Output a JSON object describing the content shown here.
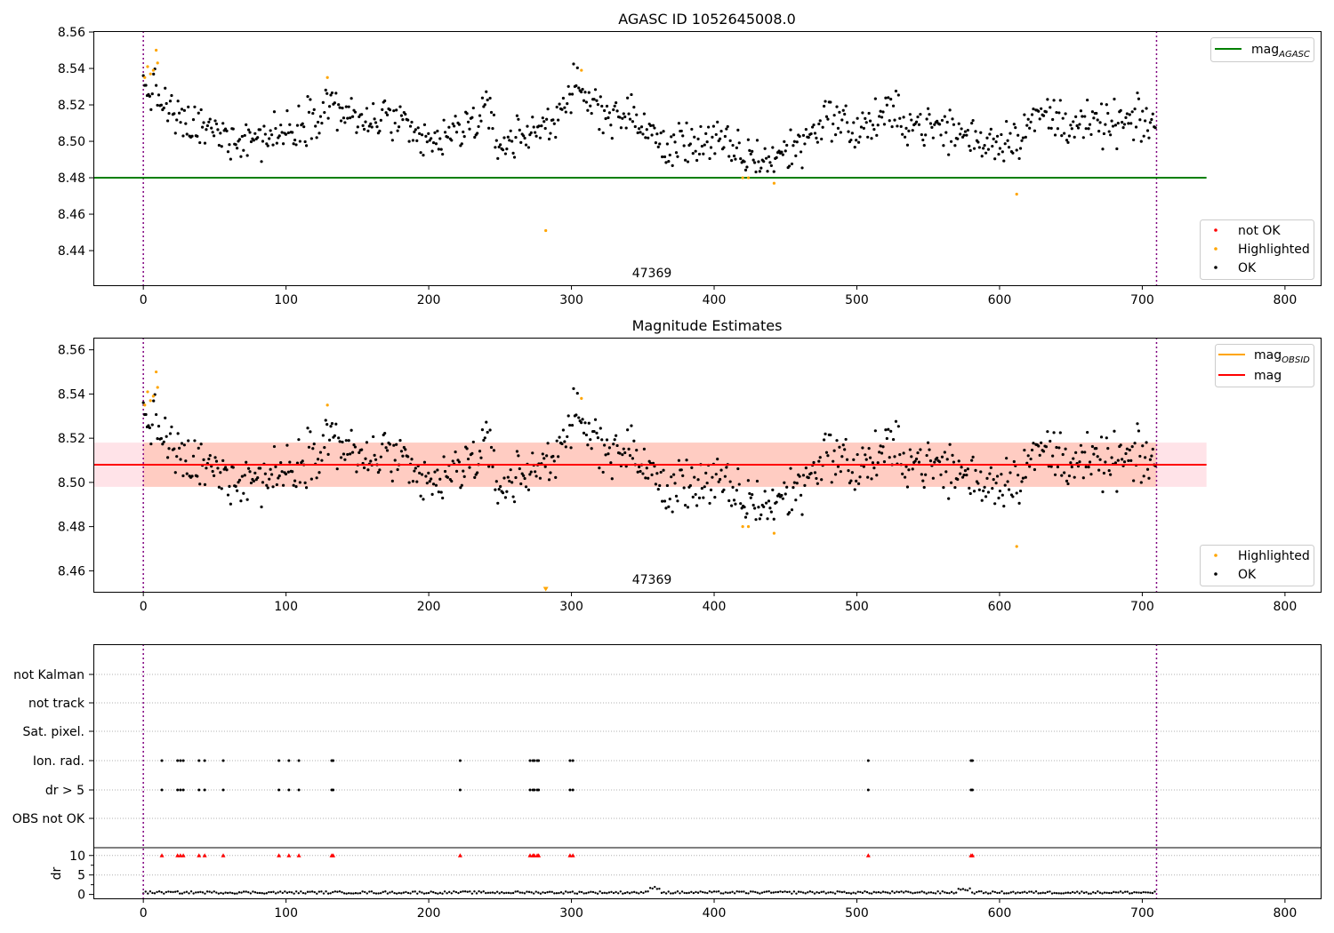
{
  "chart_data": [
    {
      "type": "scatter",
      "title": "AGASC ID 1052645008.0",
      "xlim": [
        -35,
        825
      ],
      "ylim": [
        8.421,
        8.5605
      ],
      "x_ticks": [
        0,
        100,
        200,
        300,
        400,
        500,
        600,
        700,
        800
      ],
      "y_ticks": [
        "8.44",
        "8.46",
        "8.48",
        "8.50",
        "8.52",
        "8.54",
        "8.56"
      ],
      "obsid_label": "47369",
      "obs_boundaries": [
        0,
        710
      ],
      "hlines": [
        {
          "name": "mag_AGASC",
          "y": 8.48,
          "x_range": [
            -35,
            745
          ],
          "color": "#008000"
        }
      ],
      "legend_lines": {
        "placement": "top-right",
        "entries": [
          {
            "label": "mag",
            "sub": "AGASC",
            "color": "#008000"
          }
        ]
      },
      "legend_points": {
        "placement": "bottom-right",
        "entries": [
          {
            "label": "not OK",
            "color": "#ff0000"
          },
          {
            "label": "Highlighted",
            "color": "#ffa500"
          },
          {
            "label": "OK",
            "color": "#000000"
          }
        ]
      },
      "highlighted": [
        [
          1,
          8.535
        ],
        [
          3,
          8.541
        ],
        [
          5,
          8.537
        ],
        [
          7,
          8.539
        ],
        [
          9,
          8.55
        ],
        [
          10,
          8.543
        ],
        [
          129,
          8.535
        ],
        [
          282,
          8.451
        ],
        [
          307,
          8.539
        ],
        [
          420,
          8.48
        ],
        [
          424,
          8.48
        ],
        [
          442,
          8.477
        ],
        [
          612,
          8.471
        ]
      ],
      "not_ok": []
    },
    {
      "type": "scatter",
      "title": "Magnitude Estimates",
      "xlim": [
        -35,
        825
      ],
      "ylim": [
        8.4505,
        8.5655
      ],
      "x_ticks": [
        0,
        100,
        200,
        300,
        400,
        500,
        600,
        700,
        800
      ],
      "y_ticks": [
        "8.46",
        "8.48",
        "8.50",
        "8.52",
        "8.54",
        "8.56"
      ],
      "obsid_label": "47369",
      "obs_boundaries": [
        0,
        710
      ],
      "mag_line": {
        "y": 8.508,
        "x_range": [
          -35,
          745
        ],
        "color": "#ff0000"
      },
      "mag_band": {
        "y_low": 8.498,
        "y_high": 8.518,
        "x_range": [
          -35,
          745
        ],
        "color": "#ffc0cb"
      },
      "obsid_line": {
        "y": 8.508,
        "x_range": [
          0,
          710
        ],
        "color": "#ffa500"
      },
      "obsid_band": {
        "y_low": 8.498,
        "y_high": 8.518,
        "x_range": [
          0,
          710
        ],
        "color": "#ffa07a"
      },
      "legend_lines": {
        "placement": "top-right",
        "entries": [
          {
            "label": "mag",
            "sub": "OBSID",
            "color": "#ffa500"
          },
          {
            "label": "mag",
            "sub": "",
            "color": "#ff0000"
          }
        ]
      },
      "legend_points": {
        "placement": "bottom-right",
        "entries": [
          {
            "label": "Highlighted",
            "color": "#ffa500"
          },
          {
            "label": "OK",
            "color": "#000000"
          }
        ]
      },
      "highlighted": [
        [
          1,
          8.535
        ],
        [
          3,
          8.541
        ],
        [
          5,
          8.537
        ],
        [
          7,
          8.539
        ],
        [
          9,
          8.55
        ],
        [
          10,
          8.543
        ],
        [
          129,
          8.535
        ],
        [
          307,
          8.538
        ],
        [
          420,
          8.48
        ],
        [
          424,
          8.48
        ],
        [
          442,
          8.477
        ],
        [
          612,
          8.471
        ]
      ],
      "off_scale_markers": [
        [
          282,
          8.4515
        ]
      ]
    },
    {
      "type": "scatter",
      "categories": [
        "not Kalman",
        "not track",
        "Sat. pixel.",
        "Ion. rad.",
        "dr > 5",
        "OBS not OK"
      ],
      "flag_x": [
        13,
        24,
        26,
        28,
        39,
        43,
        56,
        95,
        102,
        109,
        132,
        133,
        222,
        271,
        273,
        274,
        276,
        277,
        299,
        301,
        508,
        580,
        581
      ],
      "flag_rows": {
        "Ion. rad.": true,
        "dr > 5": true
      },
      "dr_panel": {
        "ylabel": "dr",
        "y_ticks": [
          "0",
          "5",
          "10"
        ],
        "ylim": [
          -1,
          12
        ],
        "marker_y": 10,
        "marker_color": "#ff0000",
        "baseline_y": 0.5
      },
      "x_ticks": [
        0,
        100,
        200,
        300,
        400,
        500,
        600,
        700,
        800
      ],
      "xlim": [
        -35,
        825
      ],
      "obs_boundaries": [
        0,
        710
      ]
    }
  ]
}
